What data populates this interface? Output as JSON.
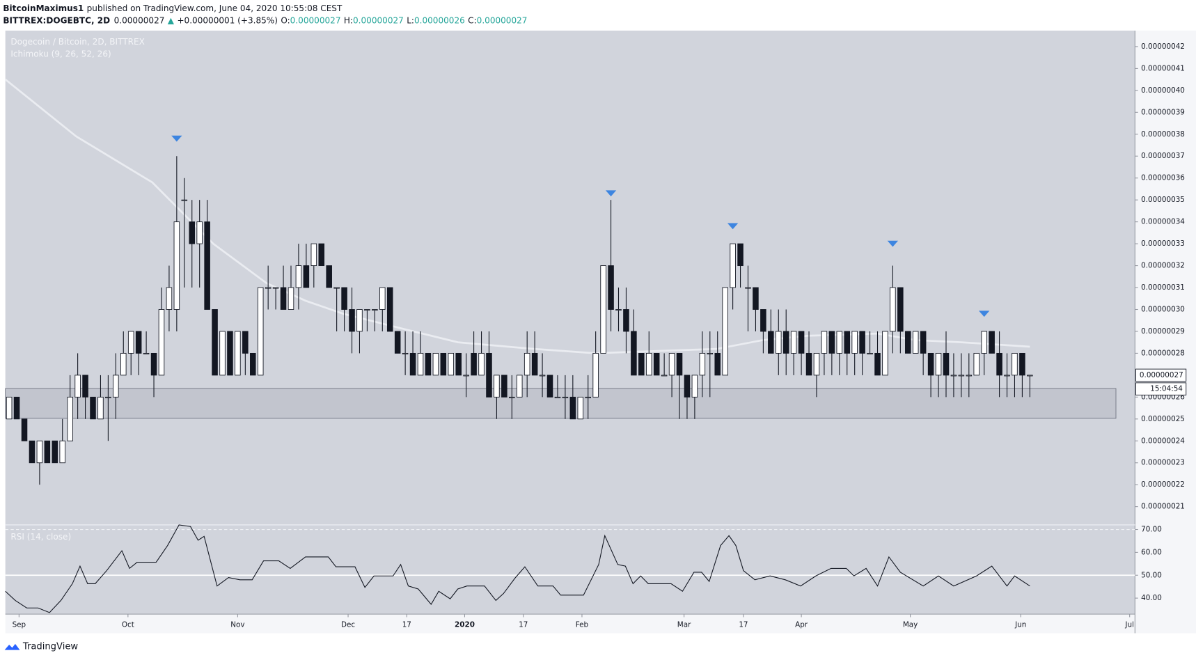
{
  "header": {
    "author": "BitcoinMaximus1",
    "published": "published on TradingView.com, June 04, 2020 10:55:08 CEST",
    "symbol": "BITTREX:DOGEBTC, 2D",
    "price": "0.00000027",
    "arrow": "▲",
    "change": "+0.00000001 (+3.85%)",
    "ohlc": [
      {
        "key": "O:",
        "value": "0.00000027"
      },
      {
        "key": "H:",
        "value": "0.00000027"
      },
      {
        "key": "L:",
        "value": "0.00000026"
      },
      {
        "key": "C:",
        "value": "0.00000027"
      }
    ]
  },
  "chart_data": {
    "type": "candlestick",
    "title": "Dogecoin / Bitcoin, 2D, BITTREX",
    "indicator": "Ichimoku (9, 26, 52, 26)",
    "up_color": "#ffffff",
    "down_color": "#131722",
    "background": "#d1d4dc",
    "open": [
      2.5e-07,
      2.6e-07,
      2.5e-07,
      2.4e-07,
      2.3e-07,
      2.4e-07,
      2.4e-07,
      2.3e-07,
      2.4e-07,
      2.6e-07,
      2.7e-07,
      2.6e-07,
      2.5e-07,
      2.6e-07,
      2.6e-07,
      2.7e-07,
      2.8e-07,
      2.9e-07,
      2.8e-07,
      2.8e-07,
      2.7e-07,
      3e-07,
      3e-07,
      3.5e-07,
      3.4e-07,
      3.3e-07,
      3.4e-07,
      3e-07,
      2.7e-07,
      2.9e-07,
      2.7e-07,
      2.9e-07,
      2.8e-07,
      2.7e-07,
      3.1e-07,
      3.1e-07,
      3.1e-07,
      3e-07,
      3.1e-07,
      3.2e-07,
      3.2e-07,
      3.3e-07,
      3.2e-07,
      3.1e-07,
      3.1e-07,
      3e-07,
      2.9e-07,
      3e-07,
      3e-07,
      3e-07,
      3.1e-07,
      2.9e-07,
      2.8e-07,
      2.8e-07,
      2.7e-07,
      2.8e-07,
      2.7e-07,
      2.8e-07,
      2.7e-07,
      2.8e-07,
      2.7e-07,
      2.8e-07,
      2.7e-07,
      2.8e-07,
      2.6e-07,
      2.7e-07,
      2.6e-07,
      2.6e-07,
      2.7e-07,
      2.8e-07,
      2.7e-07,
      2.7e-07,
      2.6e-07,
      2.6e-07,
      2.6e-07,
      2.5e-07,
      2.6e-07,
      2.6e-07,
      2.8e-07,
      3.2e-07,
      3e-07,
      3e-07,
      2.9e-07,
      2.8e-07,
      2.7e-07,
      2.8e-07,
      2.7e-07,
      2.7e-07,
      2.8e-07,
      2.7e-07,
      2.6e-07,
      2.7e-07,
      2.8e-07,
      2.8e-07,
      2.7e-07,
      3.1e-07,
      3.3e-07,
      3.1e-07,
      3.1e-07,
      3e-07,
      2.9e-07,
      2.8e-07,
      2.9e-07,
      2.8e-07,
      2.9e-07,
      2.8e-07,
      2.7e-07,
      2.8e-07,
      2.9e-07,
      2.8e-07,
      2.9e-07,
      2.8e-07,
      2.9e-07,
      2.8e-07,
      2.8e-07,
      2.7e-07,
      2.9e-07,
      3.1e-07,
      2.9e-07,
      2.8e-07,
      2.9e-07,
      2.8e-07,
      2.7e-07,
      2.8e-07,
      2.7e-07,
      2.7e-07,
      2.7e-07,
      2.7e-07,
      2.8e-07,
      2.9e-07,
      2.8e-07,
      2.7e-07,
      2.7e-07,
      2.8e-07,
      2.7e-07
    ],
    "high": [
      2.6e-07,
      2.6e-07,
      2.5e-07,
      2.4e-07,
      2.4e-07,
      2.4e-07,
      2.4e-07,
      2.5e-07,
      2.7e-07,
      2.8e-07,
      2.7e-07,
      2.6e-07,
      2.7e-07,
      2.7e-07,
      2.8e-07,
      2.9e-07,
      2.9e-07,
      2.9e-07,
      2.9e-07,
      2.8e-07,
      3.1e-07,
      3.2e-07,
      3.7e-07,
      3.6e-07,
      3.5e-07,
      3.5e-07,
      3.5e-07,
      3e-07,
      2.9e-07,
      2.9e-07,
      2.9e-07,
      2.9e-07,
      2.8e-07,
      3.1e-07,
      3.2e-07,
      3.1e-07,
      3.2e-07,
      3.2e-07,
      3.3e-07,
      3.3e-07,
      3.3e-07,
      3.3e-07,
      3.2e-07,
      3.1e-07,
      3.1e-07,
      3.1e-07,
      3e-07,
      3e-07,
      3e-07,
      3.1e-07,
      3.1e-07,
      2.9e-07,
      2.9e-07,
      2.9e-07,
      2.9e-07,
      2.8e-07,
      2.8e-07,
      2.8e-07,
      2.8e-07,
      2.8e-07,
      2.8e-07,
      2.9e-07,
      2.9e-07,
      2.9e-07,
      2.7e-07,
      2.7e-07,
      2.7e-07,
      2.7e-07,
      2.9e-07,
      2.9e-07,
      2.8e-07,
      2.7e-07,
      2.7e-07,
      2.7e-07,
      2.7e-07,
      2.6e-07,
      2.7e-07,
      2.9e-07,
      3.2e-07,
      3.5e-07,
      3.1e-07,
      3.1e-07,
      3e-07,
      2.8e-07,
      2.9e-07,
      2.8e-07,
      2.8e-07,
      2.8e-07,
      2.8e-07,
      2.7e-07,
      2.7e-07,
      2.9e-07,
      2.9e-07,
      2.9e-07,
      3.1e-07,
      3.3e-07,
      3.3e-07,
      3.2e-07,
      3.1e-07,
      3e-07,
      3e-07,
      3e-07,
      3e-07,
      2.9e-07,
      2.9e-07,
      2.9e-07,
      2.8e-07,
      2.9e-07,
      2.9e-07,
      2.9e-07,
      2.9e-07,
      2.9e-07,
      2.9e-07,
      2.9e-07,
      2.9e-07,
      2.9e-07,
      3.2e-07,
      3.1e-07,
      2.9e-07,
      2.9e-07,
      2.9e-07,
      2.8e-07,
      2.8e-07,
      2.9e-07,
      2.8e-07,
      2.8e-07,
      2.8e-07,
      2.8e-07,
      2.9e-07,
      2.9e-07,
      2.9e-07,
      2.8e-07,
      2.8e-07,
      2.8e-07,
      2.7e-07
    ],
    "low": [
      2.5e-07,
      2.5e-07,
      2.4e-07,
      2.3e-07,
      2.2e-07,
      2.3e-07,
      2.3e-07,
      2.3e-07,
      2.4e-07,
      2.5e-07,
      2.5e-07,
      2.5e-07,
      2.5e-07,
      2.4e-07,
      2.5e-07,
      2.7e-07,
      2.7e-07,
      2.7e-07,
      2.8e-07,
      2.6e-07,
      2.7e-07,
      2.9e-07,
      2.9e-07,
      3.1e-07,
      3.1e-07,
      3.1e-07,
      3e-07,
      2.7e-07,
      2.7e-07,
      2.7e-07,
      2.7e-07,
      2.7e-07,
      2.7e-07,
      2.7e-07,
      3e-07,
      3e-07,
      3e-07,
      3e-07,
      3e-07,
      3.1e-07,
      3.1e-07,
      3.2e-07,
      3.1e-07,
      2.9e-07,
      2.9e-07,
      2.8e-07,
      2.8e-07,
      2.9e-07,
      2.9e-07,
      2.9e-07,
      2.9e-07,
      2.8e-07,
      2.7e-07,
      2.7e-07,
      2.7e-07,
      2.7e-07,
      2.7e-07,
      2.7e-07,
      2.7e-07,
      2.7e-07,
      2.6e-07,
      2.7e-07,
      2.7e-07,
      2.6e-07,
      2.5e-07,
      2.6e-07,
      2.5e-07,
      2.6e-07,
      2.6e-07,
      2.7e-07,
      2.6e-07,
      2.6e-07,
      2.6e-07,
      2.5e-07,
      2.5e-07,
      2.5e-07,
      2.5e-07,
      2.6e-07,
      2.8e-07,
      2.9e-07,
      2.9e-07,
      2.8e-07,
      2.7e-07,
      2.7e-07,
      2.7e-07,
      2.7e-07,
      2.7e-07,
      2.6e-07,
      2.5e-07,
      2.5e-07,
      2.5e-07,
      2.6e-07,
      2.6e-07,
      2.7e-07,
      2.7e-07,
      3e-07,
      3.1e-07,
      2.9e-07,
      2.9e-07,
      2.8e-07,
      2.8e-07,
      2.7e-07,
      2.7e-07,
      2.7e-07,
      2.7e-07,
      2.7e-07,
      2.6e-07,
      2.7e-07,
      2.7e-07,
      2.7e-07,
      2.7e-07,
      2.7e-07,
      2.7e-07,
      2.8e-07,
      2.7e-07,
      2.7e-07,
      2.8e-07,
      2.8e-07,
      2.8e-07,
      2.8e-07,
      2.7e-07,
      2.6e-07,
      2.6e-07,
      2.6e-07,
      2.6e-07,
      2.6e-07,
      2.6e-07,
      2.7e-07,
      2.7e-07,
      2.8e-07,
      2.6e-07,
      2.6e-07,
      2.6e-07,
      2.6e-07,
      2.6e-07
    ],
    "close": [
      2.6e-07,
      2.5e-07,
      2.4e-07,
      2.3e-07,
      2.4e-07,
      2.3e-07,
      2.3e-07,
      2.4e-07,
      2.6e-07,
      2.7e-07,
      2.6e-07,
      2.5e-07,
      2.6e-07,
      2.6e-07,
      2.7e-07,
      2.8e-07,
      2.9e-07,
      2.8e-07,
      2.8e-07,
      2.7e-07,
      3e-07,
      3.1e-07,
      3.4e-07,
      3.5e-07,
      3.3e-07,
      3.4e-07,
      3e-07,
      2.7e-07,
      2.9e-07,
      2.7e-07,
      2.9e-07,
      2.8e-07,
      2.7e-07,
      3.1e-07,
      3.1e-07,
      3.1e-07,
      3e-07,
      3.1e-07,
      3.2e-07,
      3.1e-07,
      3.3e-07,
      3.2e-07,
      3.1e-07,
      3.1e-07,
      3e-07,
      2.9e-07,
      3e-07,
      3e-07,
      3e-07,
      3.1e-07,
      2.9e-07,
      2.8e-07,
      2.8e-07,
      2.7e-07,
      2.8e-07,
      2.7e-07,
      2.8e-07,
      2.7e-07,
      2.8e-07,
      2.7e-07,
      2.7e-07,
      2.7e-07,
      2.8e-07,
      2.6e-07,
      2.7e-07,
      2.6e-07,
      2.6e-07,
      2.7e-07,
      2.8e-07,
      2.7e-07,
      2.7e-07,
      2.6e-07,
      2.6e-07,
      2.6e-07,
      2.5e-07,
      2.6e-07,
      2.6e-07,
      2.8e-07,
      3.2e-07,
      3e-07,
      3e-07,
      2.9e-07,
      2.7e-07,
      2.7e-07,
      2.8e-07,
      2.7e-07,
      2.7e-07,
      2.8e-07,
      2.7e-07,
      2.6e-07,
      2.7e-07,
      2.8e-07,
      2.8e-07,
      2.7e-07,
      3.1e-07,
      3.3e-07,
      3.2e-07,
      3.1e-07,
      3e-07,
      2.9e-07,
      2.8e-07,
      2.9e-07,
      2.8e-07,
      2.9e-07,
      2.8e-07,
      2.7e-07,
      2.8e-07,
      2.9e-07,
      2.8e-07,
      2.9e-07,
      2.8e-07,
      2.9e-07,
      2.8e-07,
      2.8e-07,
      2.7e-07,
      2.9e-07,
      3.1e-07,
      2.9e-07,
      2.8e-07,
      2.9e-07,
      2.8e-07,
      2.7e-07,
      2.8e-07,
      2.7e-07,
      2.7e-07,
      2.7e-07,
      2.7e-07,
      2.8e-07,
      2.9e-07,
      2.8e-07,
      2.7e-07,
      2.7e-07,
      2.8e-07,
      2.7e-07,
      2.7e-07
    ],
    "ylim": [
      2.02e-07,
      4.273e-07
    ],
    "yticks": [
      {
        "value": 2.1e-07,
        "label": "0.00000021"
      },
      {
        "value": 2.2e-07,
        "label": "0.00000022"
      },
      {
        "value": 2.3e-07,
        "label": "0.00000023"
      },
      {
        "value": 2.4e-07,
        "label": "0.00000024"
      },
      {
        "value": 2.5e-07,
        "label": "0.00000025"
      },
      {
        "value": 2.6e-07,
        "label": "0.00000026"
      },
      {
        "value": 2.7e-07,
        "label": "0.00000027"
      },
      {
        "value": 2.8e-07,
        "label": "0.00000028"
      },
      {
        "value": 2.9e-07,
        "label": "0.00000029"
      },
      {
        "value": 3e-07,
        "label": "0.00000030"
      },
      {
        "value": 3.1e-07,
        "label": "0.00000031"
      },
      {
        "value": 3.2e-07,
        "label": "0.00000032"
      },
      {
        "value": 3.3e-07,
        "label": "0.00000033"
      },
      {
        "value": 3.4e-07,
        "label": "0.00000034"
      },
      {
        "value": 3.5e-07,
        "label": "0.00000035"
      },
      {
        "value": 3.6e-07,
        "label": "0.00000036"
      },
      {
        "value": 3.7e-07,
        "label": "0.00000037"
      },
      {
        "value": 3.8e-07,
        "label": "0.00000038"
      },
      {
        "value": 3.9e-07,
        "label": "0.00000039"
      },
      {
        "value": 4e-07,
        "label": "0.00000040"
      },
      {
        "value": 4.1e-07,
        "label": "0.00000041"
      },
      {
        "value": 4.2e-07,
        "label": "0.00000042"
      }
    ],
    "xlim": [
      -0.5,
      147.8
    ],
    "xticks": [
      {
        "value": 1.3,
        "label": "Sep"
      },
      {
        "value": 15.6,
        "label": "Oct"
      },
      {
        "value": 30.0,
        "label": "Nov"
      },
      {
        "value": 44.5,
        "label": "Dec"
      },
      {
        "value": 52.2,
        "label": "17"
      },
      {
        "value": 59.8,
        "label": "2020"
      },
      {
        "value": 67.5,
        "label": "17"
      },
      {
        "value": 75.2,
        "label": "Feb"
      },
      {
        "value": 88.6,
        "label": "Mar"
      },
      {
        "value": 96.4,
        "label": "17"
      },
      {
        "value": 104.0,
        "label": "Apr"
      },
      {
        "value": 118.3,
        "label": "May"
      },
      {
        "value": 132.8,
        "label": "Jun"
      },
      {
        "value": 147.1,
        "label": "Jul"
      }
    ],
    "baseline": {
      "color": "#eceef3",
      "x": [
        -0.5,
        8.8,
        18.8,
        26.8,
        33.8,
        38.9,
        43.9,
        51.9,
        58.9,
        68.9,
        76.9,
        84.9,
        92.9,
        98.9,
        104.9,
        114,
        119,
        125,
        134
      ],
      "values": [
        4.05e-07,
        3.79e-07,
        3.58e-07,
        3.3e-07,
        3.12e-07,
        3.04e-07,
        2.98e-07,
        2.91e-07,
        2.85e-07,
        2.82e-07,
        2.8e-07,
        2.81e-07,
        2.82e-07,
        2.86e-07,
        2.88e-07,
        2.89e-07,
        2.86e-07,
        2.85e-07,
        2.83e-07
      ]
    },
    "markers": {
      "color": "#3d85e0",
      "x": [
        22,
        79,
        95,
        116,
        128
      ],
      "y": [
        3.78e-07,
        3.53e-07,
        3.38e-07,
        3.3e-07,
        2.98e-07
      ]
    },
    "support_zone": {
      "low": 2.503e-07,
      "high": 2.639e-07,
      "x_end": 145.3
    },
    "last_price": {
      "value": 2.7e-07,
      "label": "0.00000027"
    },
    "countdown": "15:04:54",
    "rsi": {
      "type": "line",
      "title": "RSI (14, close)",
      "color": "#131722",
      "x": [
        -0.5,
        0.8,
        2.3,
        3.8,
        5.3,
        6.8,
        8.3,
        9.3,
        10.3,
        11.3,
        12.8,
        14.8,
        15.8,
        16.8,
        19.3,
        20.8,
        22.3,
        23.8,
        24.8,
        25.6,
        27.3,
        28.8,
        30.3,
        31.9,
        33.4,
        35.4,
        36.9,
        38.9,
        41.9,
        42.9,
        45.4,
        46.7,
        47.9,
        50.4,
        51.4,
        52.4,
        53.7,
        55.4,
        56.4,
        57.9,
        58.9,
        60.1,
        62.4,
        63.9,
        64.9,
        66.4,
        67.7,
        69.4,
        71.4,
        72.4,
        75.4,
        77.4,
        78.2,
        79.9,
        80.9,
        81.9,
        82.9,
        83.9,
        86.9,
        88.4,
        89.9,
        90.9,
        91.9,
        93.4,
        94.5,
        95.4,
        96.4,
        97.9,
        99.9,
        101.9,
        103.9,
        105.9,
        107.9,
        109.9,
        110.9,
        112.5,
        114,
        115.5,
        117,
        120,
        122,
        124,
        127,
        129,
        131,
        132,
        134
      ],
      "values": [
        43,
        39,
        35.7,
        35.7,
        33.7,
        39,
        46.3,
        54,
        46.3,
        46.3,
        52,
        60.7,
        53,
        55.7,
        55.7,
        63,
        72,
        71.3,
        65.3,
        67,
        45.3,
        49,
        48,
        48,
        56.3,
        56.3,
        53,
        58,
        58,
        53.7,
        53.7,
        44.7,
        49.7,
        49.7,
        54.7,
        45.3,
        44,
        37.3,
        43,
        39.7,
        44,
        45.3,
        45.3,
        39,
        42,
        48.7,
        53.7,
        45.3,
        45.3,
        41.3,
        41.3,
        54.7,
        67.3,
        54.7,
        54,
        46.3,
        49.7,
        46.3,
        46.3,
        43,
        51.3,
        51.3,
        47.3,
        63,
        67.3,
        63,
        52,
        48,
        49.7,
        48,
        45.3,
        49.7,
        53,
        53,
        49.7,
        53,
        45.3,
        58,
        51.3,
        45.3,
        49.7,
        45.3,
        49.7,
        54,
        45.3,
        49.7,
        45.3
      ],
      "ylim": [
        33,
        72
      ],
      "yticks": [
        {
          "value": 40,
          "label": "40.00"
        },
        {
          "value": 50,
          "label": "50.00"
        },
        {
          "value": 60,
          "label": "60.00"
        },
        {
          "value": 70,
          "label": "70.00"
        }
      ],
      "levels": [
        70,
        50
      ],
      "level_styles": [
        "dashed",
        "solid"
      ]
    }
  },
  "footer": {
    "brand": "TradingView"
  }
}
